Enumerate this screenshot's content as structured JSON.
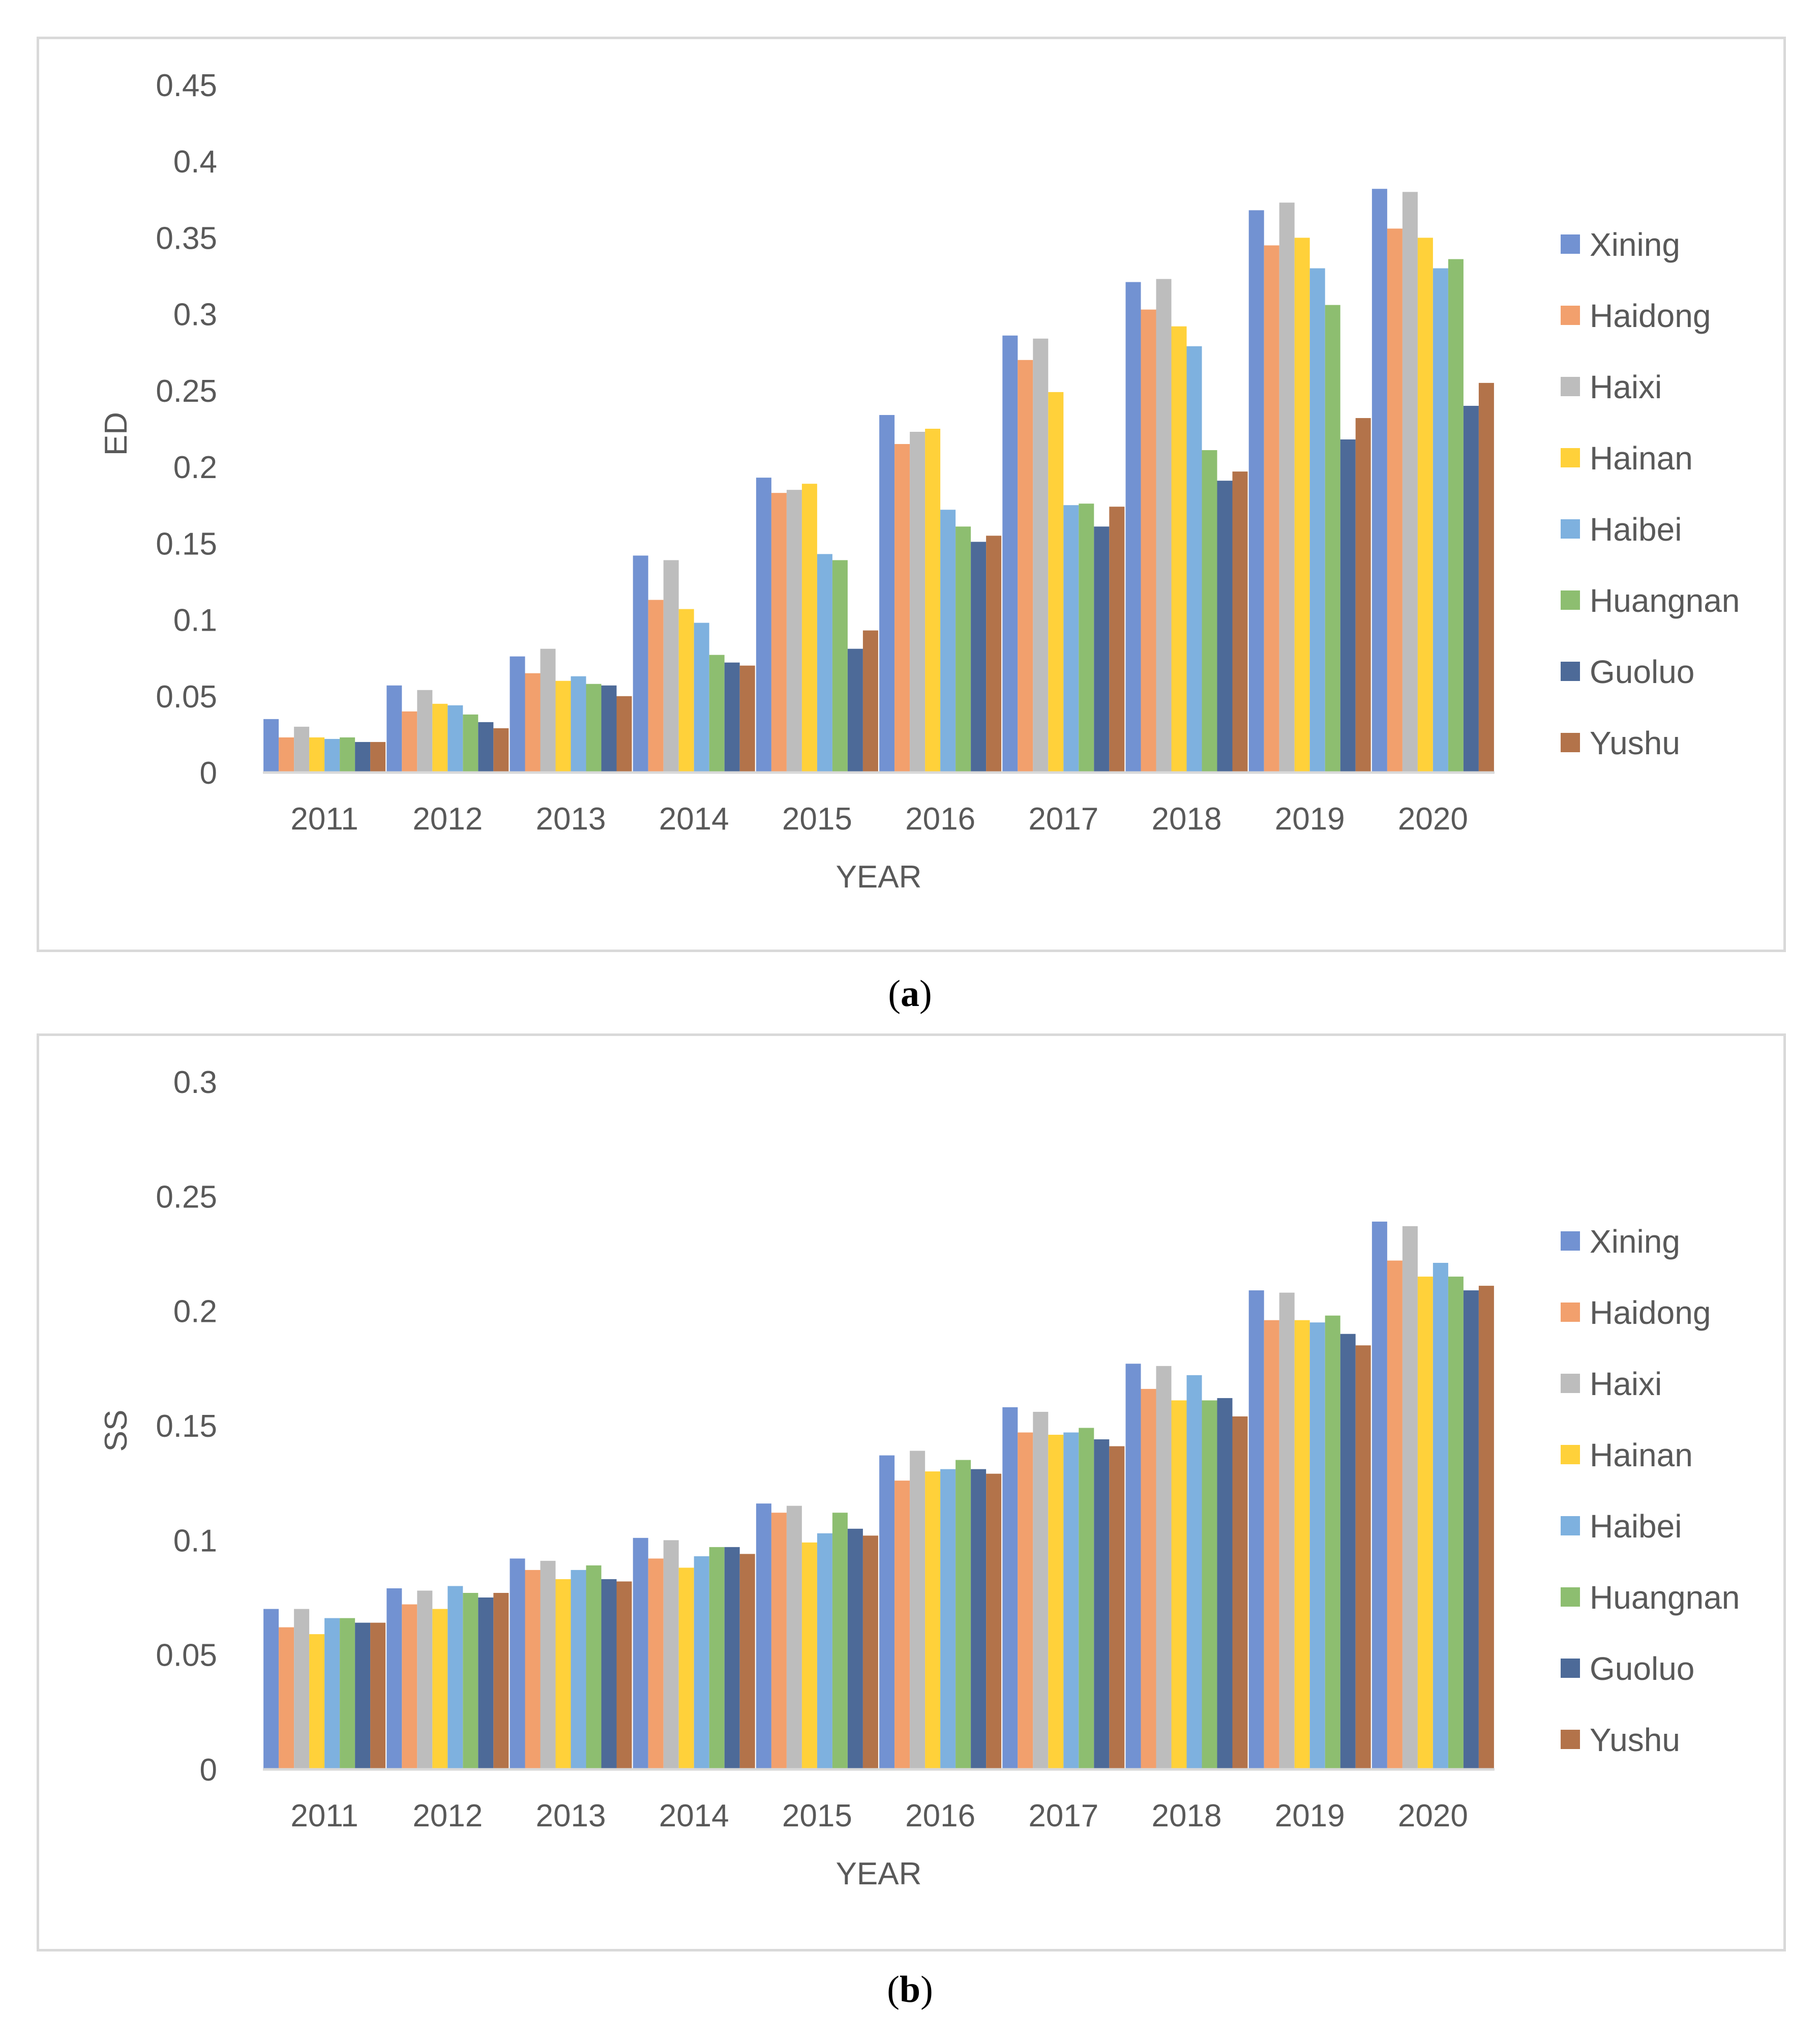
{
  "chart_data": [
    {
      "type": "bar",
      "panel": "a",
      "ylabel": "ED",
      "xlabel": "YEAR",
      "ylim": [
        0,
        0.45
      ],
      "yticks": [
        "0",
        "0.05",
        "0.1",
        "0.15",
        "0.2",
        "0.25",
        "0.3",
        "0.35",
        "0.4",
        "0.45"
      ],
      "grid": false,
      "legend": "right",
      "categories": [
        "2011",
        "2012",
        "2013",
        "2014",
        "2015",
        "2016",
        "2017",
        "2018",
        "2019",
        "2020"
      ],
      "series": [
        {
          "name": "Xining",
          "color": "#7292D2",
          "values": [
            0.035,
            0.057,
            0.076,
            0.142,
            0.193,
            0.234,
            0.286,
            0.321,
            0.368,
            0.382
          ]
        },
        {
          "name": "Haidong",
          "color": "#F2A06D",
          "values": [
            0.023,
            0.04,
            0.065,
            0.113,
            0.183,
            0.215,
            0.27,
            0.303,
            0.345,
            0.356
          ]
        },
        {
          "name": "Haixi",
          "color": "#BDBDBD",
          "values": [
            0.03,
            0.054,
            0.081,
            0.139,
            0.185,
            0.223,
            0.284,
            0.323,
            0.373,
            0.38
          ]
        },
        {
          "name": "Hainan",
          "color": "#FFD13A",
          "values": [
            0.023,
            0.045,
            0.06,
            0.107,
            0.189,
            0.225,
            0.249,
            0.292,
            0.35,
            0.35
          ]
        },
        {
          "name": "Haibei",
          "color": "#7EB1DF",
          "values": [
            0.022,
            0.044,
            0.063,
            0.098,
            0.143,
            0.172,
            0.175,
            0.279,
            0.33,
            0.33
          ]
        },
        {
          "name": "Huangnan",
          "color": "#8DBE70",
          "values": [
            0.023,
            0.038,
            0.058,
            0.077,
            0.139,
            0.161,
            0.176,
            0.211,
            0.306,
            0.336
          ]
        },
        {
          "name": "Guoluo",
          "color": "#4D6A98",
          "values": [
            0.02,
            0.033,
            0.057,
            0.072,
            0.081,
            0.151,
            0.161,
            0.191,
            0.218,
            0.24
          ]
        },
        {
          "name": "Yushu",
          "color": "#B3734A",
          "values": [
            0.02,
            0.029,
            0.05,
            0.07,
            0.093,
            0.155,
            0.174,
            0.197,
            0.232,
            0.255
          ]
        }
      ]
    },
    {
      "type": "bar",
      "panel": "b",
      "ylabel": "SS",
      "xlabel": "YEAR",
      "ylim": [
        0,
        0.3
      ],
      "yticks": [
        "0",
        "0.05",
        "0.1",
        "0.15",
        "0.2",
        "0.25",
        "0.3"
      ],
      "grid": false,
      "legend": "right",
      "categories": [
        "2011",
        "2012",
        "2013",
        "2014",
        "2015",
        "2016",
        "2017",
        "2018",
        "2019",
        "2020"
      ],
      "series": [
        {
          "name": "Xining",
          "color": "#7292D2",
          "values": [
            0.07,
            0.079,
            0.092,
            0.101,
            0.116,
            0.137,
            0.158,
            0.177,
            0.209,
            0.239
          ]
        },
        {
          "name": "Haidong",
          "color": "#F2A06D",
          "values": [
            0.062,
            0.072,
            0.087,
            0.092,
            0.112,
            0.126,
            0.147,
            0.166,
            0.196,
            0.222
          ]
        },
        {
          "name": "Haixi",
          "color": "#BDBDBD",
          "values": [
            0.07,
            0.078,
            0.091,
            0.1,
            0.115,
            0.139,
            0.156,
            0.176,
            0.208,
            0.237
          ]
        },
        {
          "name": "Hainan",
          "color": "#FFD13A",
          "values": [
            0.059,
            0.07,
            0.083,
            0.088,
            0.099,
            0.13,
            0.146,
            0.161,
            0.196,
            0.215
          ]
        },
        {
          "name": "Haibei",
          "color": "#7EB1DF",
          "values": [
            0.066,
            0.08,
            0.087,
            0.093,
            0.103,
            0.131,
            0.147,
            0.172,
            0.195,
            0.221
          ]
        },
        {
          "name": "Huangnan",
          "color": "#8DBE70",
          "values": [
            0.066,
            0.077,
            0.089,
            0.097,
            0.112,
            0.135,
            0.149,
            0.161,
            0.198,
            0.215
          ]
        },
        {
          "name": "Guoluo",
          "color": "#4D6A98",
          "values": [
            0.064,
            0.075,
            0.083,
            0.097,
            0.105,
            0.131,
            0.144,
            0.162,
            0.19,
            0.209
          ]
        },
        {
          "name": "Yushu",
          "color": "#B3734A",
          "values": [
            0.064,
            0.077,
            0.082,
            0.094,
            0.102,
            0.129,
            0.141,
            0.154,
            0.185,
            0.211
          ]
        }
      ]
    }
  ],
  "captions": {
    "a": "a",
    "b": "b"
  }
}
